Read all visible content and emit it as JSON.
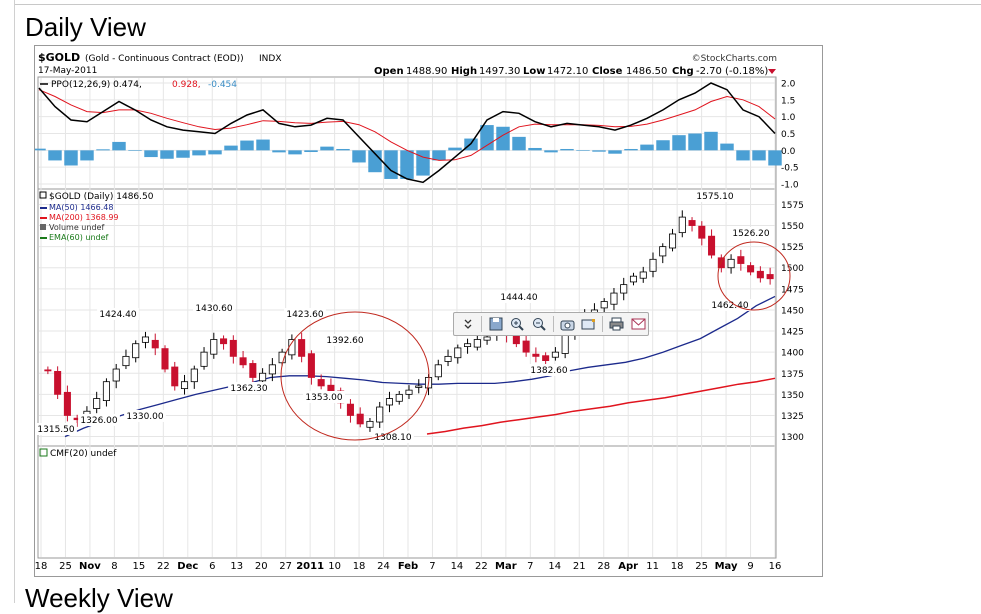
{
  "page": {
    "heading": "Daily View",
    "next_heading": "Weekly View"
  },
  "header": {
    "symbol": "$GOLD",
    "description": "(Gold - Continuous Contract (EOD))",
    "exchange": "INDX",
    "date": "17-May-2011",
    "source": "©StockCharts.com",
    "open_label": "Open",
    "open": "1488.90",
    "high_label": "High",
    "high": "1497.30",
    "low_label": "Low",
    "low": "1472.10",
    "close_label": "Close",
    "close": "1486.50",
    "chg_label": "Chg",
    "chg": "-2.70 (-0.18%)"
  },
  "colors": {
    "ppo": "#000000",
    "signal": "#e0141e",
    "hist": "#4a9fd4",
    "ma50": "#1c2a8c",
    "ma200": "#e0141e",
    "ema60": "#1a7a1a",
    "down_candle": "#c8102e",
    "circle": "#c0281e"
  },
  "toolbar": {
    "icons": [
      "expand-icon",
      "save-icon",
      "zoom-in-icon",
      "zoom-out-icon",
      "camera-icon",
      "screen-icon",
      "print-icon",
      "mail-icon"
    ]
  },
  "chart_data": [
    {
      "type": "line",
      "panel": "PPO",
      "legend": [
        "PPO(12,26,9) 0.474,",
        "0.928,",
        "-0.454"
      ],
      "ytick_labels": [
        "2.0",
        "1.5",
        "1.0",
        "0.5",
        "0.0",
        "-0.5",
        "-1.0"
      ],
      "ylim": [
        -1.0,
        2.0
      ],
      "series": [
        {
          "name": "PPO(12,26,9)",
          "values": [
            1.85,
            1.3,
            0.9,
            0.85,
            1.15,
            1.45,
            1.2,
            0.9,
            0.7,
            0.6,
            0.55,
            0.5,
            0.8,
            1.05,
            1.2,
            0.8,
            0.7,
            0.75,
            0.95,
            0.9,
            0.4,
            -0.1,
            -0.6,
            -0.85,
            -0.95,
            -0.6,
            -0.2,
            0.2,
            0.9,
            1.15,
            1.1,
            0.85,
            0.7,
            0.8,
            0.75,
            0.7,
            0.6,
            0.75,
            0.95,
            1.2,
            1.5,
            1.7,
            2.0,
            1.8,
            1.2,
            1.0,
            0.5
          ]
        },
        {
          "name": "signal",
          "values": [
            1.8,
            1.6,
            1.35,
            1.15,
            1.12,
            1.2,
            1.2,
            1.1,
            0.95,
            0.82,
            0.7,
            0.62,
            0.66,
            0.76,
            0.88,
            0.86,
            0.82,
            0.8,
            0.84,
            0.86,
            0.76,
            0.55,
            0.25,
            0.0,
            -0.2,
            -0.3,
            -0.28,
            -0.15,
            0.15,
            0.45,
            0.7,
            0.78,
            0.76,
            0.76,
            0.76,
            0.74,
            0.7,
            0.71,
            0.78,
            0.9,
            1.05,
            1.2,
            1.45,
            1.6,
            1.5,
            1.3,
            0.93
          ]
        },
        {
          "name": "histogram",
          "values": [
            0.05,
            -0.3,
            -0.45,
            -0.3,
            0.03,
            0.25,
            0.0,
            -0.2,
            -0.25,
            -0.22,
            -0.15,
            -0.12,
            0.14,
            0.29,
            0.32,
            -0.06,
            -0.12,
            -0.05,
            0.11,
            0.04,
            -0.36,
            -0.65,
            -0.85,
            -0.85,
            -0.75,
            -0.3,
            0.08,
            0.35,
            0.75,
            0.7,
            0.4,
            0.07,
            -0.06,
            0.04,
            -0.01,
            -0.04,
            -0.1,
            0.04,
            0.17,
            0.3,
            0.45,
            0.5,
            0.55,
            0.2,
            -0.3,
            -0.3,
            -0.45
          ]
        }
      ]
    },
    {
      "type": "candlestick",
      "panel": "Price",
      "legend": [
        "$GOLD (Daily) 1486.50",
        "MA(50) 1466.48",
        "MA(200) 1368.99",
        "Volume undef",
        "EMA(60) undef"
      ],
      "ytick_labels": [
        "1575",
        "1550",
        "1525",
        "1500",
        "1475",
        "1450",
        "1425",
        "1400",
        "1375",
        "1350",
        "1325",
        "1300"
      ],
      "ylim": [
        1290,
        1585
      ],
      "annotations": [
        "1315.50",
        "1326.00",
        "1330.00",
        "1424.40",
        "1430.60",
        "1362.30",
        "1423.60",
        "1392.60",
        "1353.00",
        "1308.10",
        "1444.40",
        "1382.60",
        "1575.10",
        "1526.20",
        "1462.40"
      ],
      "closes": [
        1378,
        1350,
        1325,
        1320,
        1330,
        1345,
        1365,
        1380,
        1395,
        1410,
        1418,
        1405,
        1380,
        1360,
        1365,
        1380,
        1400,
        1415,
        1410,
        1395,
        1385,
        1370,
        1375,
        1385,
        1400,
        1415,
        1395,
        1370,
        1360,
        1350,
        1340,
        1325,
        1315,
        1318,
        1335,
        1345,
        1350,
        1355,
        1360,
        1370,
        1385,
        1395,
        1405,
        1410,
        1415,
        1418,
        1430,
        1420,
        1410,
        1400,
        1395,
        1390,
        1400,
        1420,
        1435,
        1445,
        1450,
        1460,
        1470,
        1480,
        1490,
        1495,
        1510,
        1525,
        1540,
        1560,
        1550,
        1535,
        1515,
        1500,
        1510,
        1505,
        1495,
        1488,
        1487
      ],
      "ma50": [
        1300,
        1310,
        1318,
        1325,
        1332,
        1338,
        1344,
        1350,
        1355,
        1360,
        1364,
        1370,
        1372,
        1372,
        1371,
        1369,
        1367,
        1364,
        1363,
        1362,
        1362,
        1363,
        1363,
        1363,
        1365,
        1368,
        1372,
        1378,
        1382,
        1385,
        1388,
        1393,
        1400,
        1408,
        1416,
        1428,
        1440,
        1455,
        1466
      ],
      "ma200": [
        1303,
        1306,
        1310,
        1313,
        1317,
        1320,
        1323,
        1326,
        1330,
        1333,
        1336,
        1340,
        1343,
        1346,
        1350,
        1354,
        1358,
        1362,
        1365,
        1369
      ]
    },
    {
      "type": "area",
      "panel": "CMF",
      "legend": [
        "CMF(20) undef"
      ],
      "values": []
    }
  ],
  "x_axis": {
    "ticks": [
      "18",
      "25",
      "Nov",
      "8",
      "15",
      "22",
      "Dec",
      "6",
      "13",
      "20",
      "27",
      "2011",
      "10",
      "18",
      "24",
      "Feb",
      "7",
      "14",
      "22",
      "Mar",
      "7",
      "14",
      "21",
      "28",
      "Apr",
      "11",
      "18",
      "25",
      "May",
      "9",
      "16"
    ]
  }
}
